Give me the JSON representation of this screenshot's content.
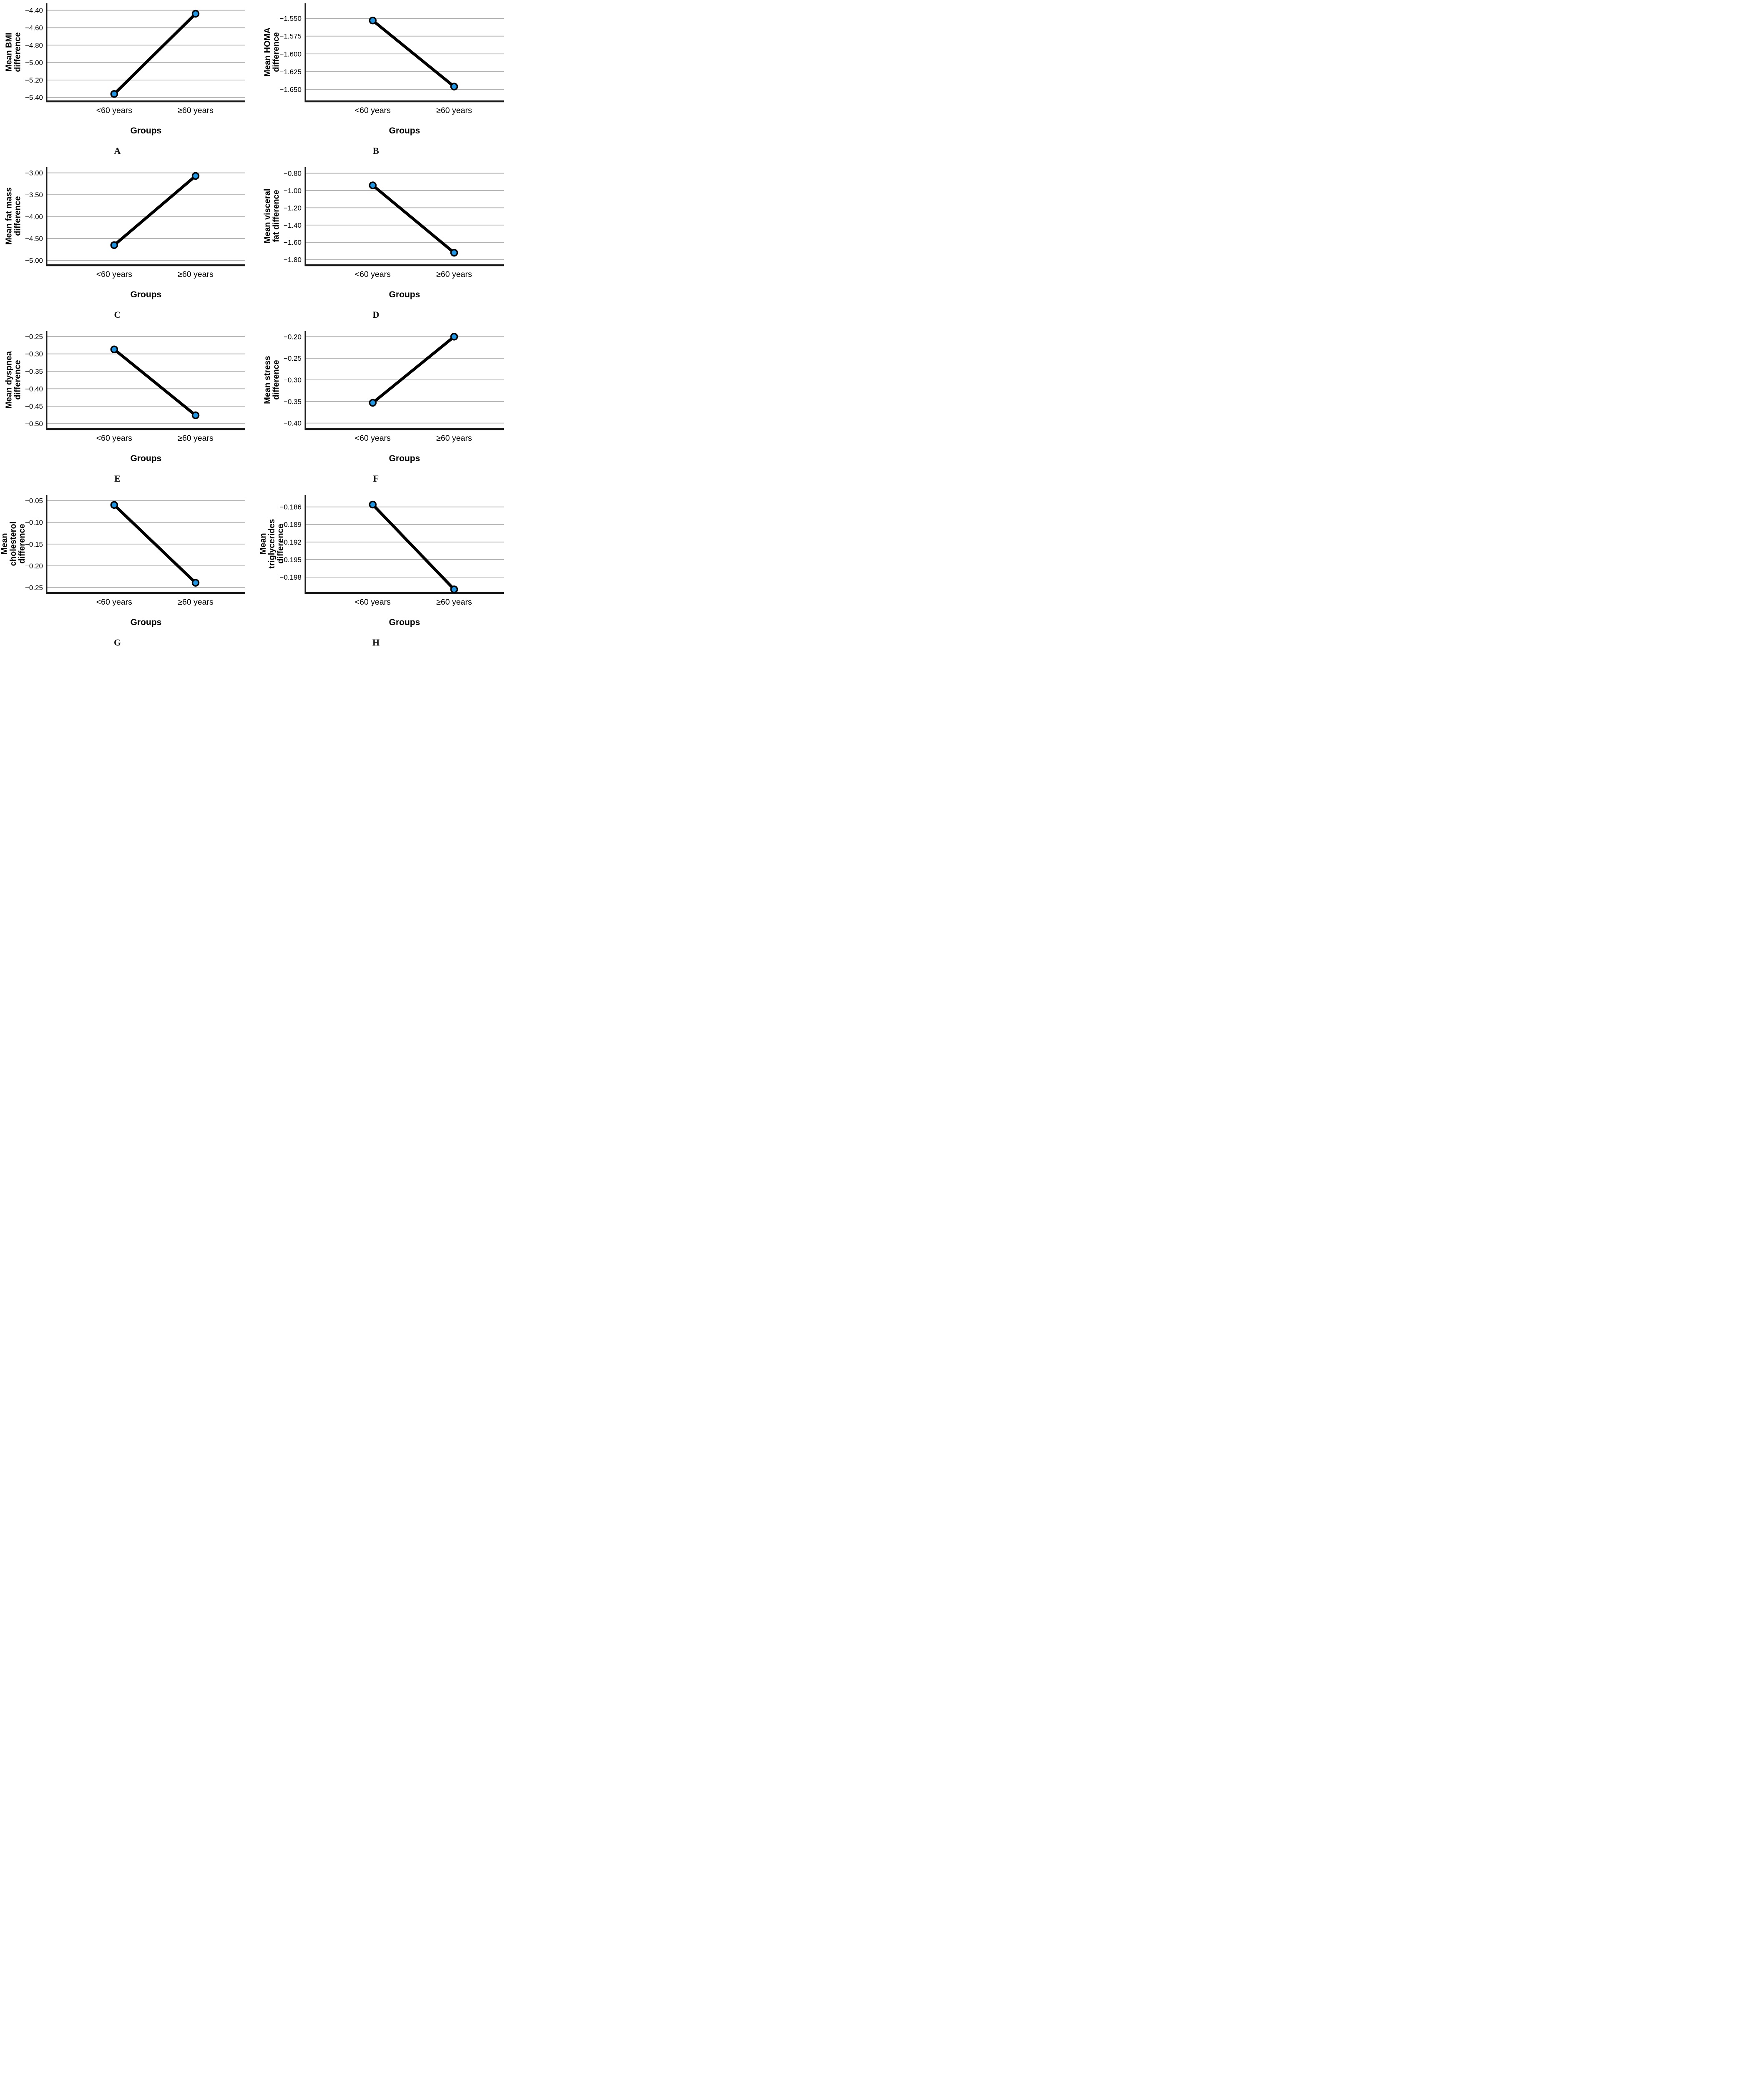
{
  "figure": {
    "description": "Eight-panel figure of mean difference line charts across two age groups",
    "panel_count": 8
  },
  "styles": {
    "marker_color": "#1e96e4",
    "marker_edge_color": "#000000",
    "line_color": "#000000",
    "grid_color": "#b0b0b0",
    "axis_color": "#1a1a1a",
    "text_color": "#000000",
    "background": "#ffffff"
  },
  "chart_data": [
    {
      "type": "line",
      "panel": "A",
      "title": "",
      "ylabel": "Mean BMI difference",
      "ylabel_lines": [
        "Mean BMI",
        "difference"
      ],
      "xlabel": "Groups",
      "categories": [
        "<60 years",
        "≥60 years"
      ],
      "values": [
        -5.36,
        -4.44
      ],
      "yticks": [
        -4.4,
        -4.6,
        -4.8,
        -5.0,
        -5.2,
        -5.4
      ],
      "ytick_labels": [
        "−4.40",
        "−4.60",
        "−4.80",
        "−5.00",
        "−5.20",
        "−5.40"
      ],
      "ylim": [
        -5.43,
        -4.33
      ],
      "grid": true,
      "legend": "none"
    },
    {
      "type": "line",
      "panel": "B",
      "title": "",
      "ylabel": "Mean HOMA difference",
      "ylabel_lines": [
        "Mean HOMA",
        "difference"
      ],
      "xlabel": "Groups",
      "categories": [
        "<60 years",
        "≥60 years"
      ],
      "values": [
        -1.553,
        -1.646
      ],
      "yticks": [
        -1.55,
        -1.575,
        -1.6,
        -1.625,
        -1.65
      ],
      "ytick_labels": [
        "−1.550",
        "−1.575",
        "−1.600",
        "−1.625",
        "−1.650"
      ],
      "ylim": [
        -1.665,
        -1.53
      ],
      "grid": true,
      "legend": "none"
    },
    {
      "type": "line",
      "panel": "C",
      "title": "",
      "ylabel": "Mean fat mass difference",
      "ylabel_lines": [
        "Mean fat mass",
        "difference"
      ],
      "xlabel": "Groups",
      "categories": [
        "<60 years",
        "≥60 years"
      ],
      "values": [
        -4.65,
        -3.07
      ],
      "yticks": [
        -3.0,
        -3.5,
        -4.0,
        -4.5,
        -5.0
      ],
      "ytick_labels": [
        "−3.00",
        "−3.50",
        "−4.00",
        "−4.50",
        "−5.00"
      ],
      "ylim": [
        -5.08,
        -2.89
      ],
      "grid": true,
      "legend": "none"
    },
    {
      "type": "line",
      "panel": "D",
      "title": "",
      "ylabel": "Mean visceral fat difference",
      "ylabel_lines": [
        "Mean visceral",
        "fat difference"
      ],
      "xlabel": "Groups",
      "categories": [
        "<60 years",
        "≥60 years"
      ],
      "values": [
        -0.94,
        -1.72
      ],
      "yticks": [
        -0.8,
        -1.0,
        -1.2,
        -1.4,
        -1.6,
        -1.8
      ],
      "ytick_labels": [
        "−0.80",
        "−1.00",
        "−1.20",
        "−1.40",
        "−1.60",
        "−1.80"
      ],
      "ylim": [
        -1.85,
        -0.74
      ],
      "grid": true,
      "legend": "none"
    },
    {
      "type": "line",
      "panel": "E",
      "title": "",
      "ylabel": "Mean dyspnea difference",
      "ylabel_lines": [
        "Mean dyspnea",
        "difference"
      ],
      "xlabel": "Groups",
      "categories": [
        "<60 years",
        "≥60 years"
      ],
      "values": [
        -0.287,
        -0.476
      ],
      "yticks": [
        -0.25,
        -0.3,
        -0.35,
        -0.4,
        -0.45,
        -0.5
      ],
      "ytick_labels": [
        "−0.25",
        "−0.30",
        "−0.35",
        "−0.40",
        "−0.45",
        "−0.50"
      ],
      "ylim": [
        -0.512,
        -0.237
      ],
      "grid": true,
      "legend": "none"
    },
    {
      "type": "line",
      "panel": "F",
      "title": "",
      "ylabel": "Mean stress difference",
      "ylabel_lines": [
        "Mean stress",
        "difference"
      ],
      "xlabel": "Groups",
      "categories": [
        "<60 years",
        "≥60 years"
      ],
      "values": [
        -0.353,
        -0.2
      ],
      "yticks": [
        -0.2,
        -0.25,
        -0.3,
        -0.35,
        -0.4
      ],
      "ytick_labels": [
        "−0.20",
        "−0.25",
        "−0.30",
        "−0.35",
        "−0.40"
      ],
      "ylim": [
        -0.411,
        -0.189
      ],
      "grid": true,
      "legend": "none"
    },
    {
      "type": "line",
      "panel": "G",
      "title": "",
      "ylabel": "Mean cholesterol difference",
      "ylabel_lines": [
        "Mean",
        "cholesterol",
        "difference"
      ],
      "xlabel": "Groups",
      "categories": [
        "<60 years",
        "≥60 years"
      ],
      "values": [
        -0.06,
        -0.239
      ],
      "yticks": [
        -0.05,
        -0.1,
        -0.15,
        -0.2,
        -0.25
      ],
      "ytick_labels": [
        "−0.05",
        "−0.10",
        "−0.15",
        "−0.20",
        "−0.25"
      ],
      "ylim": [
        -0.2595,
        -0.039
      ],
      "grid": true,
      "legend": "none"
    },
    {
      "type": "line",
      "panel": "H",
      "title": "",
      "ylabel": "Mean triglycerides difference",
      "ylabel_lines": [
        "Mean",
        "triglycerides",
        "difference"
      ],
      "xlabel": "Groups",
      "categories": [
        "<60 years",
        "≥60 years"
      ],
      "values": [
        -0.1856,
        -0.2001
      ],
      "yticks": [
        -0.186,
        -0.189,
        -0.192,
        -0.195,
        -0.198
      ],
      "ytick_labels": [
        "−0.186",
        "−0.189",
        "−0.192",
        "−0.195",
        "−0.198"
      ],
      "ylim": [
        -0.2005,
        -0.1841
      ],
      "grid": true,
      "legend": "none"
    }
  ]
}
